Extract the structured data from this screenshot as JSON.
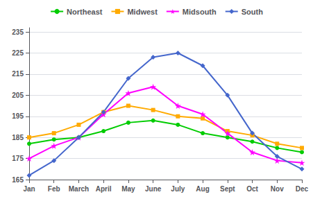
{
  "chart_data": {
    "type": "line",
    "categories": [
      "Jan",
      "Feb",
      "March",
      "April",
      "May",
      "June",
      "July",
      "Aug",
      "Sept",
      "Oct",
      "Nov",
      "Dec"
    ],
    "series": [
      {
        "name": "Northeast",
        "color": "#00cc00",
        "marker": "circle",
        "values": [
          182,
          184,
          185,
          188,
          192,
          193,
          191,
          187,
          185,
          183,
          180,
          178
        ]
      },
      {
        "name": "Midwest",
        "color": "#ffaa00",
        "marker": "square",
        "values": [
          185,
          187,
          191,
          197,
          200,
          198,
          195,
          194,
          188,
          186,
          182,
          180
        ]
      },
      {
        "name": "Midsouth",
        "color": "#ff00ff",
        "marker": "star",
        "values": [
          175,
          181,
          185,
          196,
          206,
          209,
          200,
          196,
          187,
          178,
          174,
          173
        ]
      },
      {
        "name": "South",
        "color": "#4466cc",
        "marker": "diamond",
        "values": [
          167,
          174,
          185,
          197,
          213,
          223,
          225,
          219,
          205,
          187,
          176,
          170
        ]
      }
    ],
    "ylim": [
      165,
      237
    ],
    "yticks": [
      165,
      175,
      185,
      195,
      205,
      215,
      225,
      235
    ],
    "grid": true,
    "legend": "top"
  }
}
